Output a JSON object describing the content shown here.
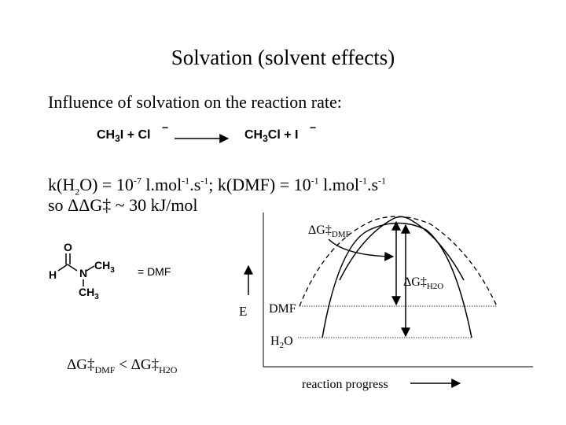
{
  "slide": {
    "title": "Solvation (solvent effects)",
    "subtitle": "Influence of solvation on the reaction rate:"
  },
  "reaction": {
    "reactants": "CH3I + Cl",
    "reactant_charge": "−",
    "products": "CH3Cl + I",
    "product_charge": "−"
  },
  "rates": {
    "k_h2o_label": "k(H",
    "k_h2o_sub": "2",
    "k_h2o_label2": "O) = 10",
    "k_h2o_exp": "-7",
    "k_h2o_units_a": " l.mol",
    "k_h2o_units_exp1": "-1",
    "k_h2o_units_b": ".s",
    "k_h2o_units_exp2": "-1",
    "separator": "; k(DMF) = 10",
    "k_dmf_exp": "-1",
    "k_dmf_units_a": " l.mol",
    "k_dmf_units_exp1": "-1",
    "k_dmf_units_b": ".s",
    "k_dmf_units_exp2": "-1"
  },
  "ddg": {
    "text": "so ΔΔG‡ ~ 30 kJ/mol"
  },
  "dmf_structure": {
    "atom_o": "O",
    "atom_h": "H",
    "atom_n": "N",
    "ch3_top": "CH3",
    "ch3_bottom": "CH3",
    "equals": "= DMF"
  },
  "diagram": {
    "y_axis_label": "E",
    "x_axis_label": "reaction progress",
    "dmf_level_label": "DMF",
    "h2o_level_label": "H",
    "h2o_level_sub": "2",
    "h2o_level_label2": "O",
    "dg_dmf_label": "ΔG‡",
    "dg_dmf_sub": "DMF",
    "dg_h2o_label": "ΔG‡",
    "dg_h2o_sub": "H2O"
  },
  "comparison": {
    "left": "ΔG‡",
    "left_sub": "DMF",
    "op": " < ΔG‡",
    "right_sub": "H2O"
  }
}
